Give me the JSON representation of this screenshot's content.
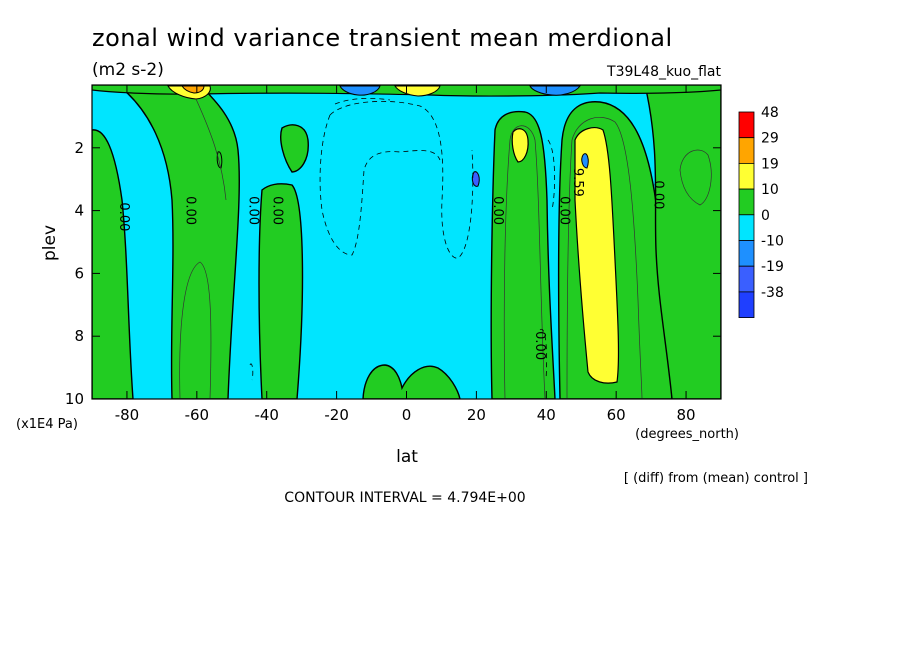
{
  "chart_data": {
    "type": "contour",
    "title": "zonal wind variance transient mean merdional",
    "units": "(m2 s-2)",
    "experiment": "T39L48_kuo_flat",
    "xlabel": "lat",
    "xunits": "(degrees_north)",
    "ylabel": "plev",
    "yunits": "(x1E4 Pa)",
    "xlim": [
      -90,
      90
    ],
    "ylim": [
      10,
      0
    ],
    "x_ticks": [
      -80,
      -60,
      -40,
      -20,
      0,
      20,
      40,
      60,
      80
    ],
    "x_tick_labels": [
      "-80",
      "-60",
      "-40",
      "-20",
      "0",
      "20",
      "40",
      "60",
      "80"
    ],
    "y_ticks": [
      2,
      4,
      6,
      8,
      10
    ],
    "y_tick_labels": [
      "2",
      "4",
      "6",
      "8",
      "10"
    ],
    "contour_interval": "CONTOUR INTERVAL = 4.794E+00",
    "note": "[ (diff) from (mean) control ]",
    "colorbar": {
      "levels": [
        "48",
        "29",
        "19",
        "10",
        "0",
        "-10",
        "-19",
        "-38"
      ],
      "colors": [
        "#ff0000",
        "#ffa500",
        "#ffff33",
        "#22cc22",
        "#00e5ff",
        "#1e90ff",
        "#3a5fff",
        "#1f3fff"
      ]
    },
    "contour_labels": [
      {
        "text": "0.00",
        "lat": -82,
        "plev": 4.2
      },
      {
        "text": "0.00",
        "lat": -63,
        "plev": 4.0
      },
      {
        "text": "0.00",
        "lat": -45,
        "plev": 4.0
      },
      {
        "text": "0.00",
        "lat": -38,
        "plev": 4.0
      },
      {
        "text": "0.00",
        "lat": 25,
        "plev": 4.0
      },
      {
        "text": "0.00",
        "lat": 37,
        "plev": 8.3
      },
      {
        "text": "0.00",
        "lat": 44,
        "plev": 4.0
      },
      {
        "text": "9.59",
        "lat": 48,
        "plev": 3.1
      },
      {
        "text": "0.00",
        "lat": 71,
        "plev": 3.5
      }
    ]
  }
}
